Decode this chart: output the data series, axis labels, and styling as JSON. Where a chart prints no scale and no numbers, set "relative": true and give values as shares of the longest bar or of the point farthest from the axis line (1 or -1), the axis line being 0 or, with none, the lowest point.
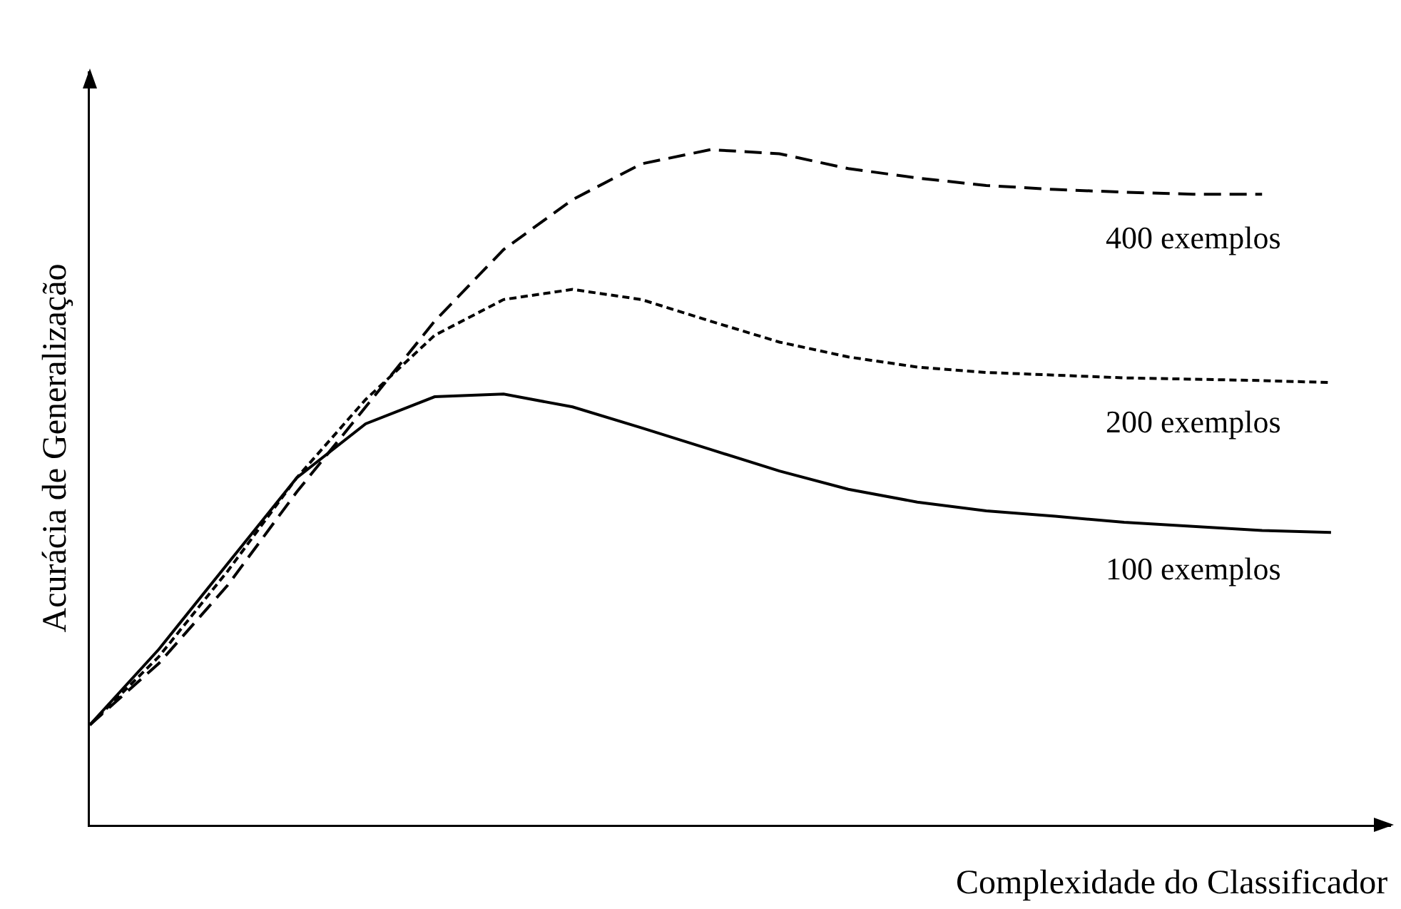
{
  "chart_data": {
    "type": "line",
    "relative": true,
    "xlabel": "Complexidade do Classificador",
    "ylabel": "Acurácia de Generalização",
    "legend": false,
    "marker": "none",
    "categories": [
      null,
      null,
      null,
      null,
      null,
      null,
      null,
      null,
      null,
      null,
      null,
      null,
      null,
      null,
      null,
      null,
      null,
      null,
      null
    ],
    "series": [
      {
        "name": "400 exemplos",
        "color": "#000000",
        "line_style": "dashed",
        "values": [
          0.148,
          0.239,
          0.355,
          0.493,
          0.619,
          0.746,
          0.852,
          0.926,
          0.979,
          1.0,
          0.994,
          0.972,
          0.958,
          0.947,
          0.941,
          0.937,
          0.934,
          0.934,
          null
        ]
      },
      {
        "name": "200 exemplos",
        "color": "#000000",
        "line_style": "dotted",
        "values": [
          0.148,
          0.249,
          0.376,
          0.514,
          0.63,
          0.725,
          0.778,
          0.793,
          0.778,
          0.746,
          0.715,
          0.693,
          0.678,
          0.67,
          0.666,
          0.662,
          0.66,
          0.658,
          0.655
        ]
      },
      {
        "name": "100 exemplos",
        "color": "#000000",
        "line_style": "solid",
        "values": [
          0.148,
          0.26,
          0.387,
          0.514,
          0.594,
          0.634,
          0.638,
          0.619,
          0.588,
          0.556,
          0.524,
          0.497,
          0.478,
          0.465,
          0.457,
          0.448,
          0.442,
          0.436,
          0.433
        ]
      }
    ]
  }
}
